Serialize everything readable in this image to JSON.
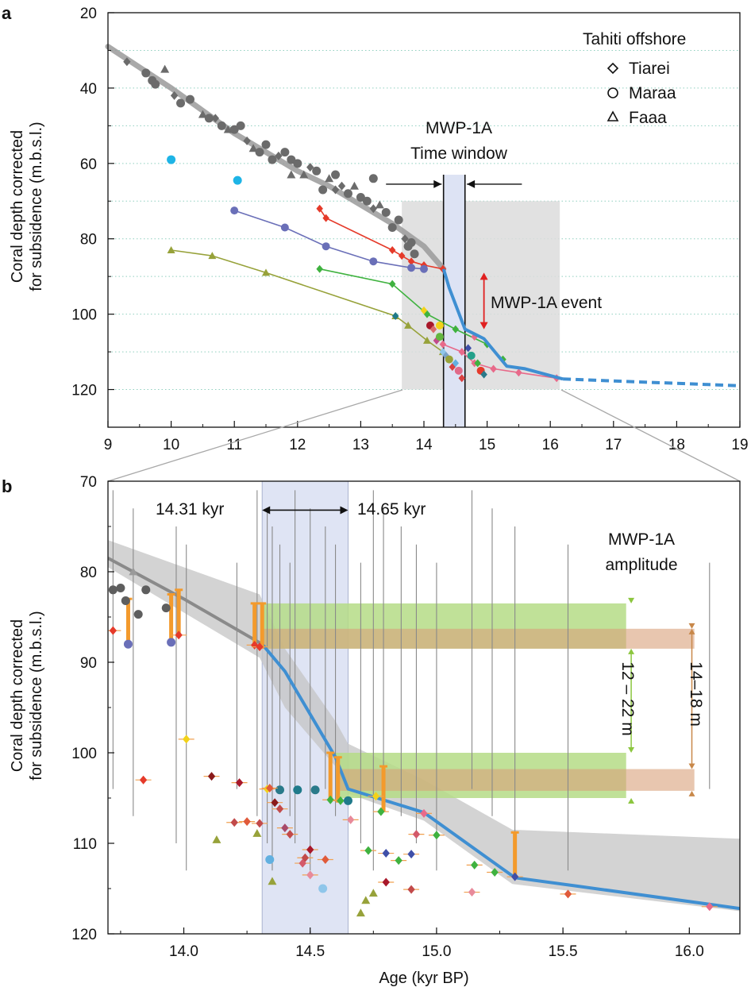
{
  "chart_data": [
    {
      "panel": "a",
      "type": "scatter",
      "title": "",
      "ylabel_line1": "Coral depth corrected",
      "ylabel_line2": "for subsidence  (m.b.s.l.)",
      "xlabel": "",
      "xlim": [
        9,
        19
      ],
      "ylim": [
        130,
        20
      ],
      "x_ticks": [
        "9",
        "10",
        "11",
        "12",
        "13",
        "14",
        "15",
        "16",
        "17",
        "18",
        "19"
      ],
      "y_ticks": [
        "20",
        "40",
        "60",
        "80",
        "100",
        "120"
      ],
      "gridlines_y": [
        30,
        40,
        50,
        60,
        70,
        80,
        90,
        100,
        110,
        120
      ],
      "legend": {
        "title": "Tahiti offshore",
        "placement": "top-right",
        "entries": [
          {
            "symbol": "diamond",
            "label": "Tiarei"
          },
          {
            "symbol": "circle",
            "label": "Maraa"
          },
          {
            "symbol": "triangle",
            "label": "Faaa"
          }
        ]
      },
      "annotations": {
        "window_line1": "MWP-1A",
        "window_line2": "Time window",
        "event": "MWP-1A event"
      },
      "time_window": [
        14.31,
        14.65
      ],
      "zoom_box": {
        "x": [
          13.65,
          16.15
        ],
        "y": [
          70,
          120
        ]
      },
      "event_range": [
        89,
        104
      ],
      "colors": {
        "accent_blue": "#3f8fd2",
        "gray_band": "#9a9a9a",
        "box": "#dcdcdc",
        "window": "#dde3f4",
        "grid": "#8fcfbf",
        "red_arrow": "#e02020"
      },
      "sea_level_curve": {
        "x": [
          9.0,
          10.0,
          11.0,
          12.0,
          12.5,
          13.0,
          13.5,
          14.0,
          14.31,
          14.4,
          14.65,
          14.9,
          15.3,
          16.2
        ],
        "y": [
          29,
          40,
          52,
          62,
          66,
          71,
          76,
          82,
          88,
          93,
          103,
          106,
          114,
          117
        ]
      },
      "blue_curve": {
        "x": [
          14.31,
          14.4,
          14.65,
          14.95,
          15.31,
          15.6,
          16.2
        ],
        "y": [
          88,
          93,
          104,
          106.5,
          113.8,
          114.5,
          117.2
        ]
      },
      "blue_dashed": {
        "x": [
          16.2,
          19.0
        ],
        "y": [
          117.2,
          119
        ]
      },
      "gray_points": {
        "x": [
          9.3,
          9.6,
          9.7,
          9.75,
          9.9,
          10.05,
          10.15,
          10.3,
          10.5,
          10.6,
          10.7,
          10.8,
          10.9,
          11.0,
          11.1,
          11.2,
          11.3,
          11.4,
          11.5,
          11.6,
          11.7,
          11.8,
          11.9,
          12.0,
          12.1,
          12.2,
          12.3,
          12.4,
          12.5,
          12.6,
          12.7,
          12.8,
          12.9,
          13.0,
          13.1,
          13.2,
          13.3,
          13.4,
          13.5,
          13.6,
          13.7,
          13.75,
          13.8,
          13.85,
          11.9,
          12.6,
          13.2
        ],
        "y": [
          33,
          36,
          38,
          39,
          35,
          42,
          44,
          43,
          47,
          48,
          48,
          50,
          51,
          51,
          50,
          54,
          56,
          57,
          55,
          59,
          58,
          57,
          59,
          60,
          63,
          61,
          62,
          67,
          64,
          63,
          66,
          68,
          66,
          69,
          70,
          72,
          71,
          73,
          77,
          75,
          80,
          82,
          81,
          84,
          63,
          67,
          64
        ]
      },
      "cyan_points": {
        "x": [
          10.0,
          11.05
        ],
        "y": [
          59,
          64.5
        ]
      },
      "series": [
        {
          "color": "#e53a2a",
          "marker": "diamond",
          "x": [
            12.35,
            12.45,
            13.5,
            13.65,
            13.8,
            14.0,
            14.3
          ],
          "y": [
            72,
            74.5,
            83,
            84.5,
            86,
            87,
            88
          ]
        },
        {
          "color": "#6a6fb8",
          "marker": "circle",
          "x": [
            11.0,
            11.8,
            12.45,
            13.2,
            13.8,
            14.0
          ],
          "y": [
            72.5,
            77,
            82,
            86,
            87.7,
            88
          ]
        },
        {
          "color": "#3fb23f",
          "marker": "diamond",
          "x": [
            12.35,
            13.5,
            14.05,
            14.5,
            15.0,
            15.25
          ],
          "y": [
            88,
            92,
            100,
            104,
            108,
            112
          ]
        },
        {
          "color": "#97a23a",
          "marker": "triangle",
          "x": [
            10.0,
            10.65,
            11.5,
            13.55,
            13.75,
            14.05,
            14.3
          ],
          "y": [
            83,
            84.5,
            89,
            100.5,
            103,
            107,
            110
          ]
        },
        {
          "color": "#e86a8a",
          "marker": "diamond",
          "x": [
            14.3,
            14.6,
            14.8,
            15.1,
            15.5,
            16.1
          ],
          "y": [
            108,
            110,
            113,
            114.5,
            115.5,
            117
          ]
        }
      ],
      "colored_points": {
        "x": [
          14.0,
          14.1,
          14.15,
          14.2,
          14.25,
          14.3,
          14.35,
          14.4,
          14.45,
          14.5,
          14.55,
          14.6,
          14.7,
          14.75,
          14.8,
          14.85,
          14.9,
          14.95,
          13.55,
          14.25
        ],
        "y": [
          99,
          103,
          104,
          107,
          106,
          110,
          111,
          112,
          114,
          113,
          115,
          117,
          109,
          111,
          106,
          113,
          115,
          116,
          100.5,
          103
        ],
        "colors": [
          "#f2d21a",
          "#a8182a",
          "#d96a6a",
          "#c24a8a",
          "#63b63f",
          "#8fc6ea",
          "#7aa2c8",
          "#97a23a",
          "#d94040",
          "#62b0e0",
          "#e06a8a",
          "#d94040",
          "#3f4fa8",
          "#23a08a",
          "#e86a8a",
          "#3fb23f",
          "#e53a2a",
          "#2a7a8a",
          "#1f7a8a",
          "#f2d21a"
        ]
      }
    },
    {
      "panel": "b",
      "type": "scatter",
      "title": "",
      "ylabel_line1": "Coral depth corrected",
      "ylabel_line2": "for subsidence (m.b.s.l.)",
      "xlabel": "Age (kyr BP)",
      "xlim": [
        13.7,
        16.2
      ],
      "ylim": [
        120,
        70
      ],
      "x_ticks": [
        "14.0",
        "14.5",
        "15.0",
        "15.5",
        "16.0"
      ],
      "y_ticks": [
        "70",
        "80",
        "90",
        "100",
        "110",
        "120"
      ],
      "annotations": {
        "t1": "14.31 kyr",
        "t2": "14.65 kyr",
        "amp_line1": "MWP-1A",
        "amp_line2": "amplitude",
        "green_range": "12 – 22 m",
        "tan_range": "14–18 m"
      },
      "time_window": [
        14.31,
        14.65
      ],
      "green_bands": [
        {
          "x": [
            14.31,
            15.75
          ],
          "y": [
            83.5,
            88.5
          ]
        },
        {
          "x": [
            14.6,
            15.75
          ],
          "y": [
            100,
            105
          ]
        }
      ],
      "tan_bands": [
        {
          "x": [
            14.31,
            16.02
          ],
          "y": [
            86.3,
            88.5
          ]
        },
        {
          "x": [
            14.6,
            16.02
          ],
          "y": [
            101.8,
            104.2
          ]
        }
      ],
      "amplitude_green": [
        82.5,
        105.8
      ],
      "amplitude_tan": [
        84,
        105.6
      ],
      "uncertainty_band": {
        "x": [
          13.7,
          14.3,
          14.4,
          14.6,
          14.65,
          14.95,
          15.3,
          16.2,
          16.2,
          15.3,
          14.95,
          14.65,
          14.6,
          14.4,
          14.3,
          13.7
        ],
        "y": [
          76.5,
          82.5,
          88.5,
          96.5,
          99,
          103,
          108.5,
          109.5,
          117.5,
          114.5,
          107.5,
          104.5,
          101.5,
          95,
          89.5,
          79.5
        ]
      },
      "gray_curve": {
        "x": [
          13.7,
          14.0,
          14.31
        ],
        "y": [
          78.5,
          83,
          88
        ]
      },
      "blue_curve": {
        "x": [
          14.31,
          14.4,
          14.6,
          14.65,
          14.95,
          15.31,
          15.55,
          16.2
        ],
        "y": [
          88,
          91,
          100.5,
          104,
          106.6,
          113.8,
          114.7,
          117.2
        ]
      },
      "orange_bars": [
        {
          "x": 13.78,
          "y1": 83,
          "y2": 88
        },
        {
          "x": 13.95,
          "y1": 82.5,
          "y2": 87.5
        },
        {
          "x": 13.98,
          "y1": 82,
          "y2": 87
        },
        {
          "x": 14.28,
          "y1": 83.5,
          "y2": 88
        },
        {
          "x": 14.31,
          "y1": 83.5,
          "y2": 88.5
        },
        {
          "x": 14.58,
          "y1": 100,
          "y2": 105
        },
        {
          "x": 14.61,
          "y1": 100.5,
          "y2": 105.5
        },
        {
          "x": 14.79,
          "y1": 101.5,
          "y2": 106.5
        },
        {
          "x": 15.31,
          "y1": 108.8,
          "y2": 113.8
        }
      ],
      "points": {
        "x": [
          13.72,
          13.75,
          13.77,
          13.8,
          13.82,
          13.85,
          13.78,
          13.93,
          13.95,
          13.98,
          14.01,
          13.72,
          13.84,
          14.11,
          14.13,
          14.2,
          14.22,
          14.28,
          14.3,
          14.33,
          14.34,
          14.36,
          14.38,
          14.42,
          14.45,
          14.48,
          14.5,
          14.52,
          14.55,
          14.58,
          14.62,
          14.65,
          14.7,
          14.73,
          14.75,
          14.78,
          14.8,
          14.85,
          14.9,
          14.92,
          14.95,
          15.0,
          15.15,
          15.23,
          15.31,
          15.52,
          16.08,
          14.29,
          14.34,
          14.56,
          14.66,
          14.72,
          14.4,
          14.5,
          14.47,
          14.3,
          14.35,
          14.25,
          14.76,
          14.9,
          14.8,
          15.14,
          14.38
        ],
        "y": [
          82,
          81.8,
          83.2,
          80,
          84.7,
          82,
          88,
          84,
          87.8,
          87,
          98.5,
          86.5,
          103,
          102.6,
          109.6,
          107.7,
          103.3,
          88.1,
          88.3,
          104,
          111.8,
          105.5,
          104.1,
          109,
          104.1,
          111.6,
          113.5,
          104.1,
          115,
          105.2,
          105.3,
          105.3,
          117.7,
          110.8,
          115.5,
          106.5,
          114.3,
          111.9,
          111.2,
          109,
          106.7,
          109.1,
          112.4,
          113.2,
          113.7,
          115.6,
          117,
          108.9,
          103.9,
          111.8,
          107.4,
          116.3,
          108.3,
          110.7,
          112.2,
          107.8,
          114.2,
          107.6,
          104.8,
          115.1,
          111.1,
          115.4,
          106.2
        ],
        "colors": [
          "#5e5e5e",
          "#5e5e5e",
          "#5e5e5e",
          "#9a9a9a",
          "#5e5e5e",
          "#5e5e5e",
          "#6a6fb8",
          "#5e5e5e",
          "#6a6fb8",
          "#e53a2a",
          "#f2d21a",
          "#e53a2a",
          "#e53a2a",
          "#8a1a1a",
          "#97a23a",
          "#c24a4a",
          "#a8182a",
          "#e53a2a",
          "#e53a2a",
          "#f2d21a",
          "#62b0e0",
          "#8a1a1a",
          "#2a7a8a",
          "#c24a4a",
          "#1f7a8a",
          "#c24a4a",
          "#e88a9a",
          "#2a7a8a",
          "#8fc6ea",
          "#3fb23f",
          "#3fb23f",
          "#1f7a8a",
          "#97a23a",
          "#3fb23f",
          "#97a23a",
          "#3fb23f",
          "#a8182a",
          "#3fb23f",
          "#3f4fa8",
          "#d45a6a",
          "#e86a8a",
          "#3fb23f",
          "#3fb23f",
          "#3fb23f",
          "#3f4fa8",
          "#e05a3a",
          "#e86a8a",
          "#97a23a",
          "#e05a3a",
          "#e05a3a",
          "#e88a9a",
          "#97a23a",
          "#a84a6a",
          "#a8182a",
          "#d45a6a",
          "#c24a4a",
          "#97a23a",
          "#e05a3a",
          "#f2d21a",
          "#c24a4a",
          "#3f4fa8",
          "#e88a9a",
          "#c24a4a"
        ],
        "markers": [
          "c",
          "c",
          "c",
          "t",
          "c",
          "c",
          "c",
          "c",
          "c",
          "d",
          "d",
          "d",
          "d",
          "d",
          "t",
          "d",
          "d",
          "d",
          "d",
          "d",
          "c",
          "d",
          "c",
          "d",
          "c",
          "d",
          "d",
          "c",
          "c",
          "d",
          "d",
          "c",
          "t",
          "d",
          "t",
          "d",
          "d",
          "d",
          "d",
          "d",
          "d",
          "d",
          "d",
          "d",
          "d",
          "d",
          "d",
          "t",
          "d",
          "d",
          "d",
          "t",
          "d",
          "d",
          "d",
          "d",
          "t",
          "d",
          "d",
          "d",
          "d",
          "d",
          "d"
        ]
      },
      "vertical_lines_x": [
        13.72,
        13.8,
        13.97,
        14.01,
        14.21,
        14.29,
        14.33,
        14.35,
        14.38,
        14.42,
        14.44,
        14.5,
        14.56,
        14.6,
        14.7,
        14.75,
        14.79,
        14.86,
        14.92,
        15.0,
        15.14,
        15.22,
        15.31,
        15.52,
        16.08
      ]
    }
  ]
}
